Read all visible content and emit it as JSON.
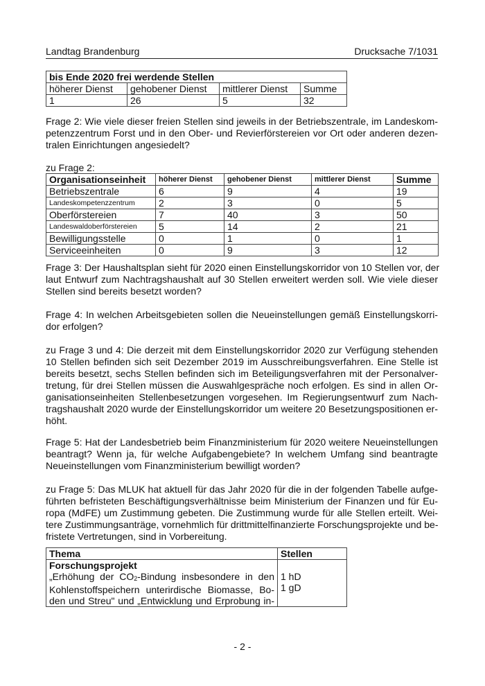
{
  "header": {
    "left": "Landtag Brandenburg",
    "right": "Drucksache 7/1031"
  },
  "table1": {
    "title": "bis Ende 2020 frei werdende Stellen",
    "columns": [
      "höherer Dienst",
      "gehobener Dienst",
      "mittlerer Dienst",
      "Summe"
    ],
    "values": [
      "1",
      "26",
      "5",
      "32"
    ]
  },
  "frage2": {
    "lines": [
      "Frage 2: Wie viele dieser freien Stellen sind jeweils in der Betriebszentrale, im Landeskom-",
      "petenzzentrum Forst und in den Ober- und Revierförstereien vor Ort oder anderen dezen-",
      "tralen Einrichtungen angesiedelt?"
    ]
  },
  "zu_frage2": "zu Frage 2:",
  "table2": {
    "columns": [
      "Organisationseinheit",
      "höherer Dienst",
      "gehobener Dienst",
      "mittlerer Dienst",
      "Summe"
    ],
    "rows": [
      {
        "name": "Betriebszentrale",
        "small": false,
        "values": [
          "6",
          "9",
          "4",
          "19"
        ]
      },
      {
        "name": "Landeskompetenzzentrum",
        "small": true,
        "values": [
          "2",
          "3",
          "0",
          "5"
        ]
      },
      {
        "name": "Oberförstereien",
        "small": false,
        "values": [
          "7",
          "40",
          "3",
          "50"
        ]
      },
      {
        "name": "Landeswaldoberförstereien",
        "small": true,
        "values": [
          "5",
          "14",
          "2",
          "21"
        ]
      },
      {
        "name": "Bewilligungsstelle",
        "small": false,
        "values": [
          "0",
          "1",
          "0",
          "1"
        ]
      },
      {
        "name": "Serviceeinheiten",
        "small": false,
        "values": [
          "0",
          "9",
          "3",
          "12"
        ]
      }
    ]
  },
  "frage3": {
    "lines": [
      "Frage 3: Der Haushaltsplan sieht für 2020 einen Einstellungskorridor von 10 Stellen vor, der",
      "laut Entwurf zum Nachtragshaushalt auf 30 Stellen erweitert werden soll. Wie viele dieser",
      "Stellen sind bereits besetzt worden?"
    ]
  },
  "frage4": {
    "lines": [
      "Frage 4: In welchen Arbeitsgebieten sollen die Neueinstellungen gemäß Einstellungskorri-",
      "dor erfolgen?"
    ]
  },
  "antwort34": {
    "lines": [
      "zu Frage 3 und 4: Die derzeit mit dem Einstellungskorridor 2020 zur Verfügung stehenden",
      "10 Stellen befinden sich seit Dezember 2019 im Ausschreibungsverfahren. Eine Stelle ist",
      "bereits besetzt, sechs Stellen befinden sich im Beteiligungsverfahren mit der Personalver-",
      "tretung, für drei Stellen müssen die Auswahlgespräche noch erfolgen. Es sind in allen Or-",
      "ganisationseinheiten Stellenbesetzungen vorgesehen. Im Regierungsentwurf zum Nach-",
      "tragshaushalt 2020 wurde der Einstellungskorridor um weitere 20 Besetzungspositionen er-",
      "höht."
    ]
  },
  "frage5": {
    "lines": [
      "Frage 5: Hat der Landesbetrieb beim Finanzministerium für 2020 weitere Neueinstellungen",
      "beantragt? Wenn ja, für welche Aufgabengebiete? In welchem Umfang sind beantragte",
      "Neueinstellungen vom Finanzministerium bewilligt worden?"
    ]
  },
  "antwort5": {
    "lines": [
      "zu Frage 5: Das MLUK hat aktuell für das Jahr 2020 für die in der folgenden Tabelle aufge-",
      "führten befristeten Beschäftigungsverhältnisse beim Ministerium der Finanzen und für Eu-",
      "ropa (MdFE) um Zustimmung gebeten. Die Zustimmung wurde für alle Stellen erteilt. Wei-",
      "tere Zustimmungsanträge, vornehmlich für drittmittelfinanzierte Forschungsprojekte und be-",
      "fristete Vertretungen, sind in Vorbereitung."
    ]
  },
  "table3": {
    "columns": [
      "Thema",
      "Stellen"
    ],
    "row": {
      "heading": "Forschungsprojekt",
      "line1_a": "„Erhöhung der CO",
      "line1_sub": "2",
      "line1_b": "-Bindung insbesondere in den",
      "line2": "Kohlenstoffspeichern unterirdische Biomasse, Bo-",
      "line3": "den und Streu\" und „Entwicklung und Erprobung in-",
      "stellen": [
        "1 hD",
        "1 gD"
      ]
    }
  },
  "page_number": "- 2 -"
}
